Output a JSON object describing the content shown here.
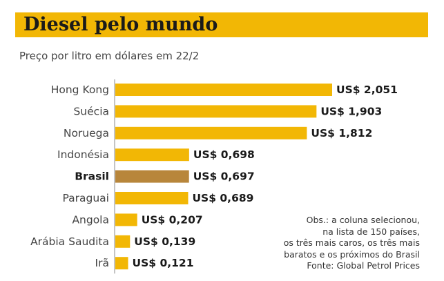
{
  "chart_data": {
    "type": "bar",
    "orientation": "horizontal",
    "title": "Diesel pelo mundo",
    "subtitle": "Preço por litro em dólares em 22/2",
    "categories": [
      "Hong Kong",
      "Suécia",
      "Noruega",
      "Indonésia",
      "Brasil",
      "Paraguai",
      "Angola",
      "Arábia Saudita",
      "Irã"
    ],
    "values": [
      2.051,
      1.903,
      1.812,
      0.698,
      0.697,
      0.689,
      0.207,
      0.139,
      0.121
    ],
    "value_labels": [
      "US$ 2,051",
      "US$ 1,903",
      "US$ 1,812",
      "US$ 0,698",
      "US$ 0,697",
      "US$ 0,689",
      "US$ 0,207",
      "US$ 0,139",
      "US$ 0,121"
    ],
    "highlight": "Brasil",
    "xlim": [
      0,
      2.051
    ],
    "grid": false,
    "legend": "none",
    "colors": {
      "bar": "#f2b705",
      "highlight": "#b8863b",
      "title_band": "#f2b705",
      "axis": "#888888"
    },
    "note_lines": [
      "Obs.: a coluna selecionou,",
      "na lista de 150 países,",
      "os três mais caros, os três mais",
      "baratos e os próximos do Brasil",
      "Fonte: Global Petrol Prices"
    ]
  }
}
